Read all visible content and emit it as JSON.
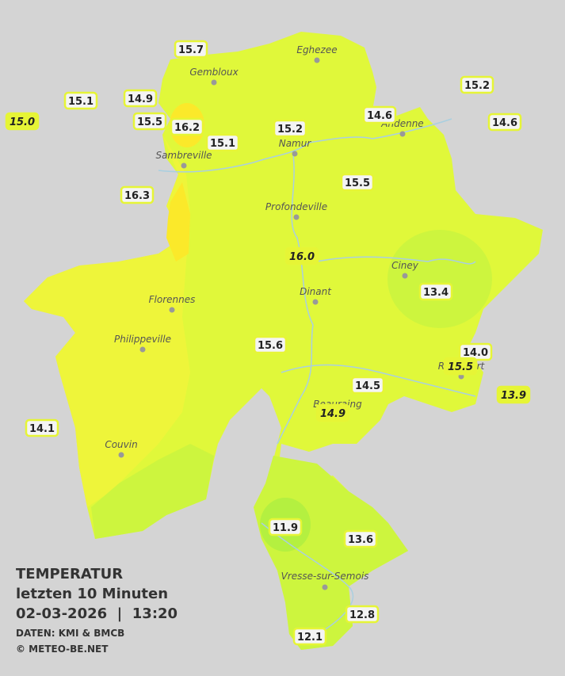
{
  "legend": {
    "title": "TEMPERATUR",
    "period": "letzten 10 Minuten",
    "datetime": "02-03-2026  |  13:20",
    "source": "DATEN: KMI & BMCB",
    "copyright": "© METEO-BE.NET"
  },
  "towns": [
    {
      "name": "Eghezee"
    },
    {
      "name": "Gembloux"
    },
    {
      "name": "Andenne"
    },
    {
      "name": "Namur"
    },
    {
      "name": "Sambreville"
    },
    {
      "name": "Profondeville"
    },
    {
      "name": "Ciney"
    },
    {
      "name": "Dinant"
    },
    {
      "name": "Florennes"
    },
    {
      "name": "Philippeville"
    },
    {
      "name": "Rochefort"
    },
    {
      "name": "Beauraing"
    },
    {
      "name": "Couvin"
    },
    {
      "name": "Vresse-sur-Semois"
    }
  ],
  "stations": [
    {
      "temp": "15.7"
    },
    {
      "temp": "15.1"
    },
    {
      "temp": "14.9"
    },
    {
      "temp": "15.0"
    },
    {
      "temp": "15.5"
    },
    {
      "temp": "16.2"
    },
    {
      "temp": "15.1"
    },
    {
      "temp": "15.2"
    },
    {
      "temp": "14.6"
    },
    {
      "temp": "15.2"
    },
    {
      "temp": "14.6"
    },
    {
      "temp": "16.3"
    },
    {
      "temp": "15.5"
    },
    {
      "temp": "16.0"
    },
    {
      "temp": "13.4"
    },
    {
      "temp": "15.6"
    },
    {
      "temp": "14.0"
    },
    {
      "temp": "15.5"
    },
    {
      "temp": "14.5"
    },
    {
      "temp": "13.9"
    },
    {
      "temp": "14.9"
    },
    {
      "temp": "14.1"
    },
    {
      "temp": "11.9"
    },
    {
      "temp": "13.6"
    },
    {
      "temp": "12.8"
    },
    {
      "temp": "12.1"
    }
  ]
}
